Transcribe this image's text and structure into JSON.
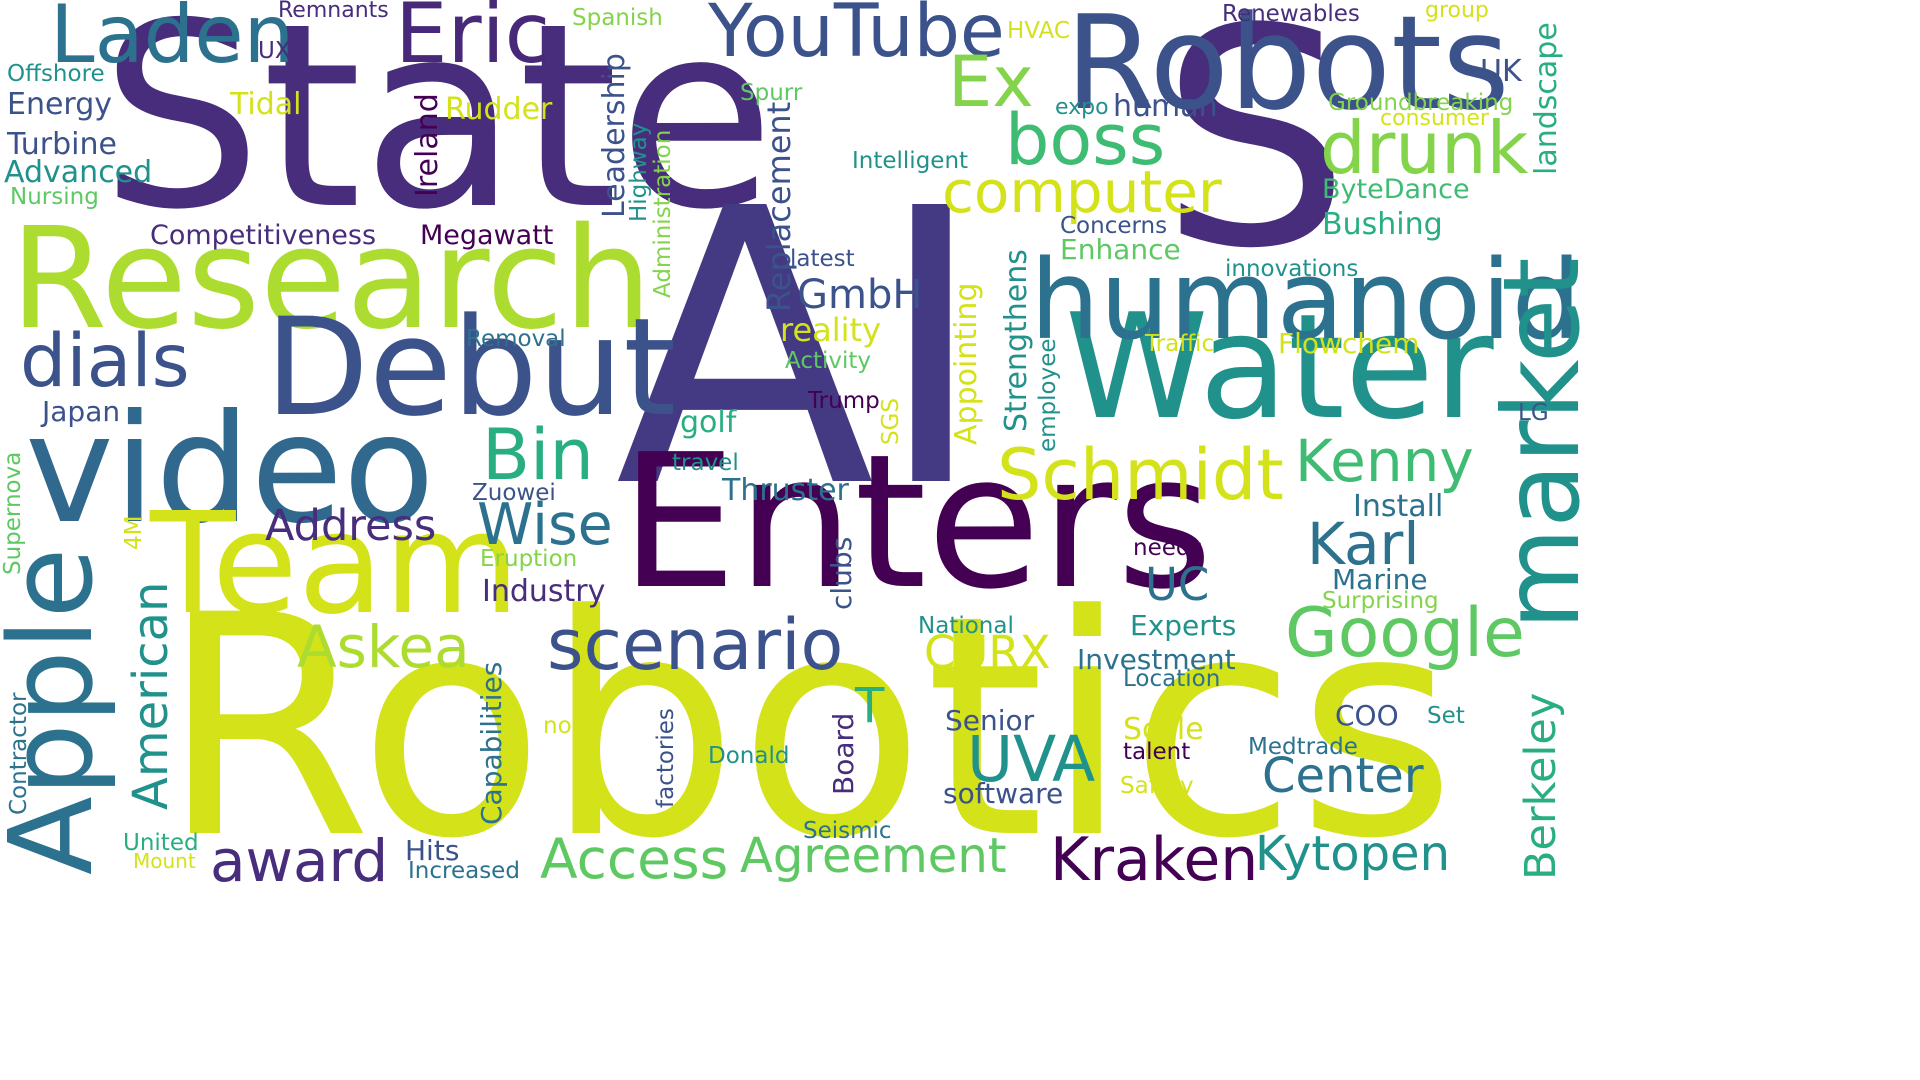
{
  "palette": {
    "deep_purple": "#440154",
    "indigo": "#472d7b",
    "slate_blue": "#3b528b",
    "steel_blue": "#2c728e",
    "teal": "#21918c",
    "sea_green": "#28ae80",
    "green": "#5ec962",
    "lime": "#addc30",
    "yellow": "#d4e21a"
  },
  "words": [
    {
      "text": "State",
      "color": "#472d7b"
    },
    {
      "text": "S",
      "color": "#472d7b"
    },
    {
      "text": "AI",
      "color": "#443983"
    },
    {
      "text": "Robotics",
      "color": "#d4e21a"
    },
    {
      "text": "Robots",
      "color": "#3b528b"
    },
    {
      "text": "Research",
      "color": "#addc30"
    },
    {
      "text": "Enters",
      "color": "#440154"
    },
    {
      "text": "Water",
      "color": "#21918c"
    },
    {
      "text": "Debut",
      "color": "#3b528b"
    },
    {
      "text": "video",
      "color": "#31688e"
    },
    {
      "text": "Team",
      "color": "#d4e21a"
    },
    {
      "text": "humanoid",
      "color": "#2c728e"
    },
    {
      "text": "market",
      "color": "#21918c"
    },
    {
      "text": "Apple",
      "color": "#2c728e"
    },
    {
      "text": "YouTube",
      "color": "#3b528b"
    },
    {
      "text": "Laden",
      "color": "#2c728e"
    },
    {
      "text": "Eric",
      "color": "#482878"
    },
    {
      "text": "Ex",
      "color": "#84d44b"
    },
    {
      "text": "boss",
      "color": "#3fbc73"
    },
    {
      "text": "drunk",
      "color": "#84d44b"
    },
    {
      "text": "computer",
      "color": "#d4e21a"
    },
    {
      "text": "dials",
      "color": "#3b528b"
    },
    {
      "text": "Schmidt",
      "color": "#d4e21a"
    },
    {
      "text": "Bin",
      "color": "#28ae80"
    },
    {
      "text": "Kenny",
      "color": "#3fbc73"
    },
    {
      "text": "Wise",
      "color": "#2c728e"
    },
    {
      "text": "Karl",
      "color": "#2c728e"
    },
    {
      "text": "Google",
      "color": "#5ec962"
    },
    {
      "text": "scenario",
      "color": "#3b528b"
    },
    {
      "text": "Askea",
      "color": "#addc30"
    },
    {
      "text": "Address",
      "color": "#472d7b"
    },
    {
      "text": "UC",
      "color": "#2c728e"
    },
    {
      "text": "UVA",
      "color": "#21918c"
    },
    {
      "text": "CURX",
      "color": "#d4e21a"
    },
    {
      "text": "Center",
      "color": "#2c728e"
    },
    {
      "text": "Kraken",
      "color": "#440154"
    },
    {
      "text": "Kytopen",
      "color": "#21918c"
    },
    {
      "text": "Agreement",
      "color": "#5ec962"
    },
    {
      "text": "Access",
      "color": "#5ec962"
    },
    {
      "text": "award",
      "color": "#472d7b"
    },
    {
      "text": "American",
      "color": "#21918c"
    },
    {
      "text": "Berkeley",
      "color": "#28ae80"
    },
    {
      "text": "GmbH",
      "color": "#3b528b"
    },
    {
      "text": "reality",
      "color": "#d4e21a"
    },
    {
      "text": "Replacement",
      "color": "#3b528b"
    },
    {
      "text": "Remnants",
      "color": "#472d7b"
    },
    {
      "text": "UXO",
      "color": "#472d7b"
    },
    {
      "text": "Spanish",
      "color": "#84d44b"
    },
    {
      "text": "HVAC",
      "color": "#d4e21a"
    },
    {
      "text": "Renewables",
      "color": "#472d7b"
    },
    {
      "text": "group",
      "color": "#d4e21a"
    },
    {
      "text": "UK",
      "color": "#3b528b"
    },
    {
      "text": "landscape",
      "color": "#28ae80"
    },
    {
      "text": "Offshore",
      "color": "#21918c"
    },
    {
      "text": "Energy",
      "color": "#3b528b"
    },
    {
      "text": "Tidal",
      "color": "#d4e21a"
    },
    {
      "text": "Rudder",
      "color": "#d4e21a"
    },
    {
      "text": "Spurr",
      "color": "#5ec962"
    },
    {
      "text": "expo",
      "color": "#21918c"
    },
    {
      "text": "human",
      "color": "#3b528b"
    },
    {
      "text": "Groundbreaking",
      "color": "#84d44b"
    },
    {
      "text": "consumer",
      "color": "#d4e21a"
    },
    {
      "text": "Turbine",
      "color": "#3b528b"
    },
    {
      "text": "Advanced",
      "color": "#21918c"
    },
    {
      "text": "Nursing",
      "color": "#5ec962"
    },
    {
      "text": "Ireland",
      "color": "#440154"
    },
    {
      "text": "Leadership",
      "color": "#3b528b"
    },
    {
      "text": "Highway",
      "color": "#21918c"
    },
    {
      "text": "Administration",
      "color": "#84d44b"
    },
    {
      "text": "Intelligent",
      "color": "#21918c"
    },
    {
      "text": "ByteDance",
      "color": "#3fbc73"
    },
    {
      "text": "Bushing",
      "color": "#28ae80"
    },
    {
      "text": "Concerns",
      "color": "#3b528b"
    },
    {
      "text": "Enhance",
      "color": "#5ec962"
    },
    {
      "text": "innovations",
      "color": "#21918c"
    },
    {
      "text": "Competitiveness",
      "color": "#472d7b"
    },
    {
      "text": "Megawatt",
      "color": "#440154"
    },
    {
      "text": "latest",
      "color": "#3b528b"
    },
    {
      "text": "Traffic",
      "color": "#d4e21a"
    },
    {
      "text": "Flowchem",
      "color": "#d4e21a"
    },
    {
      "text": "Strengthens",
      "color": "#21918c"
    },
    {
      "text": "Appointing",
      "color": "#d4e21a"
    },
    {
      "text": "employee",
      "color": "#21918c"
    },
    {
      "text": "Activity",
      "color": "#5ec962"
    },
    {
      "text": "Removal",
      "color": "#2c728e"
    },
    {
      "text": "Japan",
      "color": "#3b528b"
    },
    {
      "text": "Trump",
      "color": "#440154"
    },
    {
      "text": "SGS",
      "color": "#d4e21a"
    },
    {
      "text": "LG",
      "color": "#3b528b"
    },
    {
      "text": "golf",
      "color": "#28ae80"
    },
    {
      "text": "travel",
      "color": "#21918c"
    },
    {
      "text": "Thruster",
      "color": "#2c728e"
    },
    {
      "text": "Zuowei",
      "color": "#3b528b"
    },
    {
      "text": "Install",
      "color": "#2c728e"
    },
    {
      "text": "Supernova",
      "color": "#5ec962"
    },
    {
      "text": "4M",
      "color": "#d4e21a"
    },
    {
      "text": "Eruption",
      "color": "#84d44b"
    },
    {
      "text": "Industry",
      "color": "#472d7b"
    },
    {
      "text": "clubs",
      "color": "#3b528b"
    },
    {
      "text": "needs",
      "color": "#440154"
    },
    {
      "text": "Marine",
      "color": "#2c728e"
    },
    {
      "text": "Surprising",
      "color": "#84d44b"
    },
    {
      "text": "National",
      "color": "#21918c"
    },
    {
      "text": "Experts",
      "color": "#21918c"
    },
    {
      "text": "Investment",
      "color": "#2c728e"
    },
    {
      "text": "Location",
      "color": "#2c728e"
    },
    {
      "text": "T",
      "color": "#28ae80"
    },
    {
      "text": "Capabilities",
      "color": "#2c728e"
    },
    {
      "text": "factories",
      "color": "#3b528b"
    },
    {
      "text": "non",
      "color": "#d4e21a"
    },
    {
      "text": "Board",
      "color": "#472d7b"
    },
    {
      "text": "Senior",
      "color": "#3b528b"
    },
    {
      "text": "Scale",
      "color": "#d4e21a"
    },
    {
      "text": "COO",
      "color": "#3b528b"
    },
    {
      "text": "Set",
      "color": "#21918c"
    },
    {
      "text": "talent",
      "color": "#440154"
    },
    {
      "text": "Medtrade",
      "color": "#2c728e"
    },
    {
      "text": "Donald",
      "color": "#21918c"
    },
    {
      "text": "software",
      "color": "#3b528b"
    },
    {
      "text": "Safety",
      "color": "#d4e21a"
    },
    {
      "text": "Contractor",
      "color": "#2c728e"
    },
    {
      "text": "United",
      "color": "#28ae80"
    },
    {
      "text": "Mount",
      "color": "#d4e21a"
    },
    {
      "text": "Hits",
      "color": "#3b528b"
    },
    {
      "text": "Increased",
      "color": "#2c728e"
    },
    {
      "text": "Seismic",
      "color": "#2c728e"
    }
  ]
}
